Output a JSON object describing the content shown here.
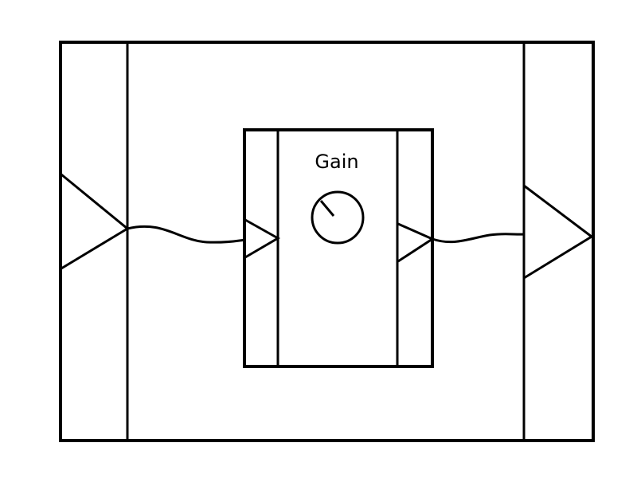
{
  "diagram": {
    "gain_label": "Gain"
  },
  "colors": {
    "stroke": "#000000",
    "background": "#ffffff"
  }
}
